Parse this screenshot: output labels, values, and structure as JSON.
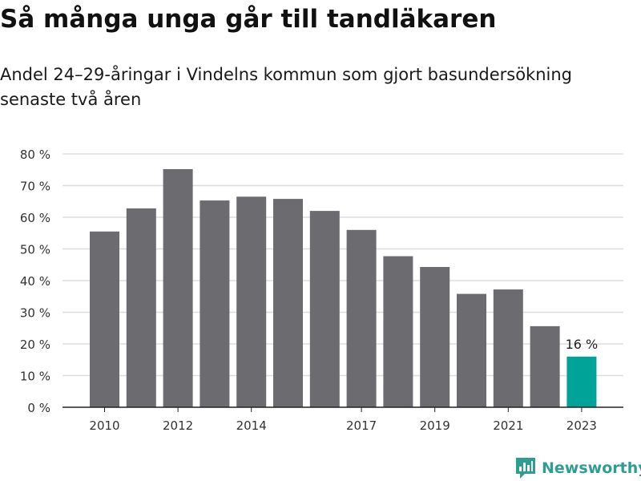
{
  "header": {
    "title": "Så många unga går till tandläkaren",
    "subtitle": "Andel 24–29-åringar i Vindelns kommun som gjort basundersökning senaste två åren"
  },
  "chart_data": {
    "type": "bar",
    "categories": [
      "2010",
      "2011",
      "2012",
      "2013",
      "2014",
      "2015",
      "2016",
      "2017",
      "2018",
      "2019",
      "2020",
      "2021",
      "2022",
      "2023"
    ],
    "values": [
      55.5,
      62.8,
      75.2,
      65.3,
      66.5,
      65.8,
      62.0,
      56.0,
      47.7,
      44.3,
      35.8,
      37.2,
      25.6,
      16
    ],
    "x_tick_labels": [
      "2010",
      "",
      "2012",
      "",
      "2014",
      "",
      "",
      "2017",
      "",
      "2019",
      "",
      "2021",
      "",
      "2023"
    ],
    "y_ticks": [
      "0 %",
      "10 %",
      "20 %",
      "30 %",
      "40 %",
      "50 %",
      "60 %",
      "70 %",
      "80 %"
    ],
    "ylim": [
      0,
      80
    ],
    "grid": true,
    "highlight_index": 13,
    "highlight_label": "16 %",
    "colors": {
      "bar": "#6c6b70",
      "highlight": "#00a397",
      "grid": "#dddddd",
      "axis": "#222222"
    }
  },
  "footer": {
    "logo_text": "Newsworthy",
    "logo_icon": "bar-chart-speech-bubble-icon",
    "logo_color": "#2e9e93"
  }
}
